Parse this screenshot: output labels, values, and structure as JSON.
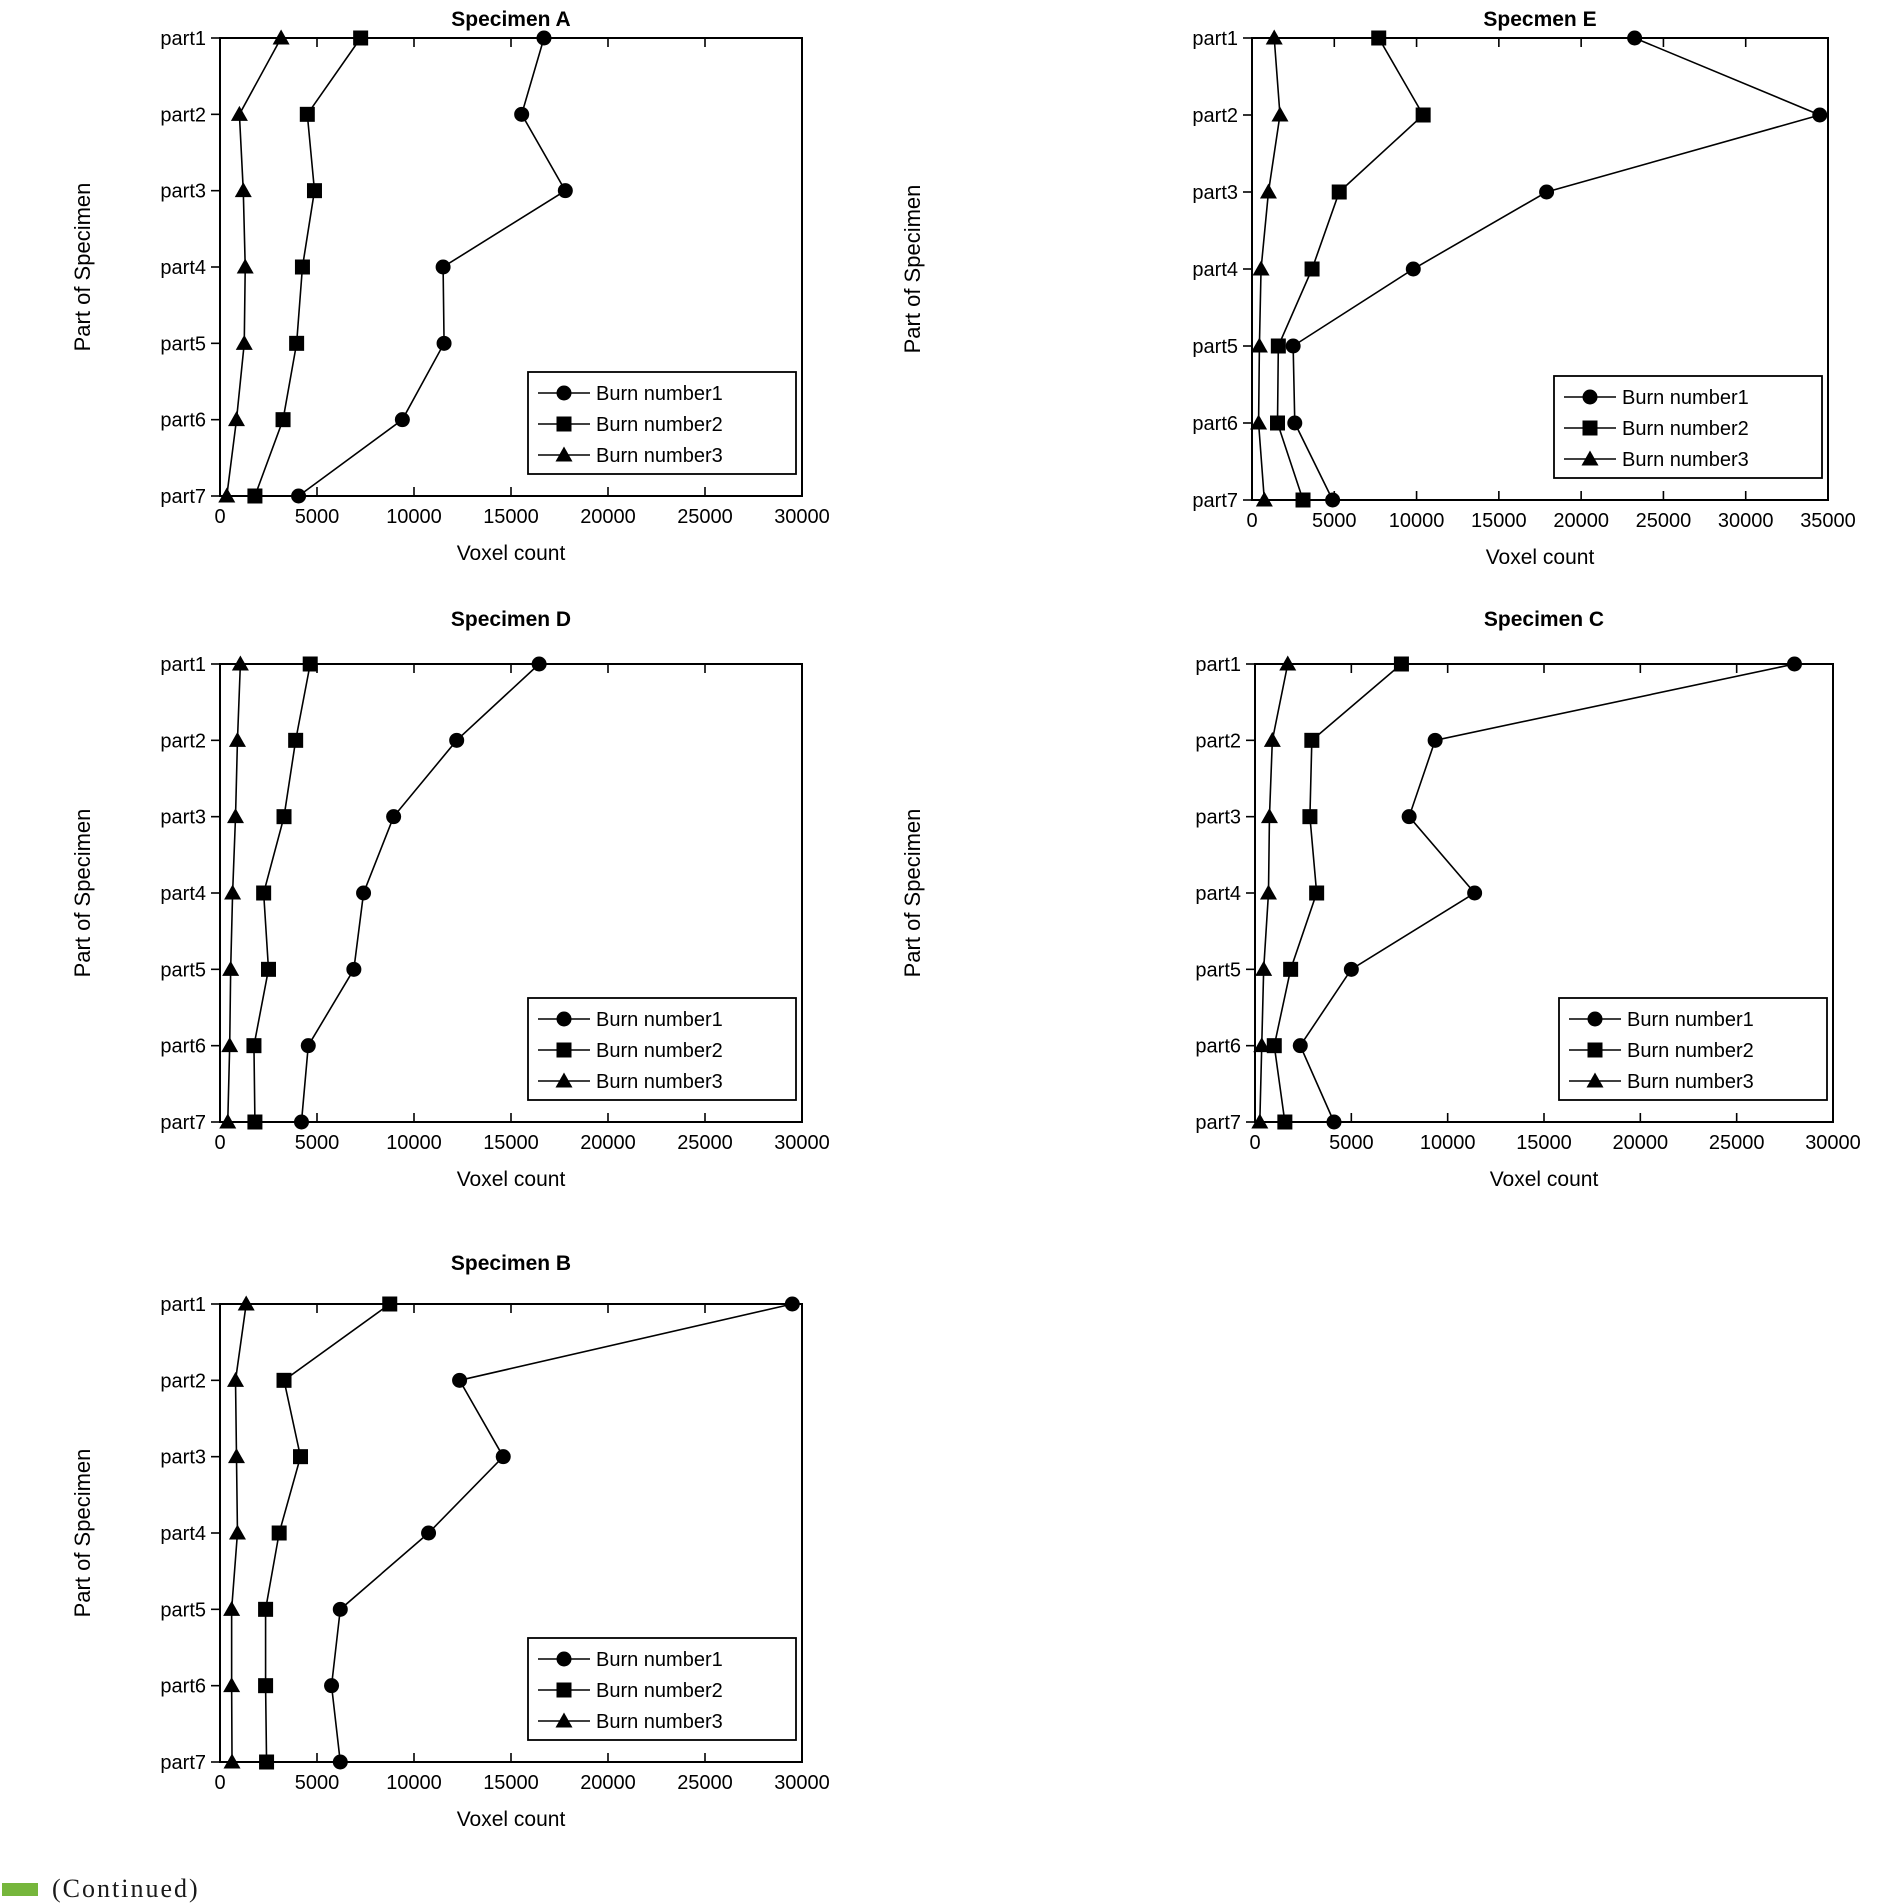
{
  "page": {
    "background_color": "#ffffff",
    "line_color": "#000000",
    "text_color": "#000000"
  },
  "footer": {
    "continued_label": "(Continued)",
    "marker_color": "#76b63c"
  },
  "chart_data": [
    {
      "type": "line",
      "title": "Specimen A",
      "xlabel": "Voxel count",
      "ylabel": "Part of Specimen",
      "categories": [
        "part1",
        "part2",
        "part3",
        "part4",
        "part5",
        "part6",
        "part7"
      ],
      "xlim": [
        0,
        30000
      ],
      "xticks": [
        0,
        5000,
        10000,
        15000,
        20000,
        25000,
        30000
      ],
      "grid": false,
      "legend_position": "lower right",
      "legend_labels": [
        "Burn number1",
        "Burn number2",
        "Burn number3"
      ],
      "series": [
        {
          "name": "Burn number1",
          "marker": "circle",
          "values": [
            16700,
            15550,
            17800,
            11500,
            11550,
            9400,
            4050
          ]
        },
        {
          "name": "Burn number2",
          "marker": "square",
          "values": [
            7250,
            4500,
            4870,
            4250,
            3950,
            3250,
            1800
          ]
        },
        {
          "name": "Burn number3",
          "marker": "triangle",
          "values": [
            3150,
            1000,
            1200,
            1300,
            1250,
            850,
            350
          ]
        }
      ]
    },
    {
      "type": "line",
      "title": "Specmen E",
      "xlabel": "Voxel count",
      "ylabel": "Part of Specimen",
      "categories": [
        "part1",
        "part2",
        "part3",
        "part4",
        "part5",
        "part6",
        "part7"
      ],
      "xlim": [
        0,
        35000
      ],
      "xticks": [
        0,
        5000,
        10000,
        15000,
        20000,
        25000,
        30000,
        35000
      ],
      "grid": false,
      "legend_position": "lower right",
      "legend_labels": [
        "Burn number1",
        "Burn number2",
        "Burn number3"
      ],
      "series": [
        {
          "name": "Burn number1",
          "marker": "circle",
          "values": [
            23250,
            34500,
            17900,
            9800,
            2500,
            2600,
            4900
          ]
        },
        {
          "name": "Burn number2",
          "marker": "square",
          "values": [
            7700,
            10400,
            5300,
            3650,
            1600,
            1550,
            3100
          ]
        },
        {
          "name": "Burn number3",
          "marker": "triangle",
          "values": [
            1350,
            1700,
            1000,
            550,
            450,
            400,
            750
          ]
        }
      ]
    },
    {
      "type": "line",
      "title": "Specimen D",
      "xlabel": "Voxel count",
      "ylabel": "Part of Specimen",
      "categories": [
        "part1",
        "part2",
        "part3",
        "part4",
        "part5",
        "part6",
        "part7"
      ],
      "xlim": [
        0,
        30000
      ],
      "xticks": [
        0,
        5000,
        10000,
        15000,
        20000,
        25000,
        30000
      ],
      "grid": false,
      "legend_position": "lower right",
      "legend_labels": [
        "Burn number1",
        "Burn number2",
        "Burn number3"
      ],
      "series": [
        {
          "name": "Burn number1",
          "marker": "circle",
          "values": [
            16450,
            12200,
            8950,
            7400,
            6900,
            4550,
            4200
          ]
        },
        {
          "name": "Burn number2",
          "marker": "square",
          "values": [
            4650,
            3900,
            3300,
            2250,
            2500,
            1750,
            1800
          ]
        },
        {
          "name": "Burn number3",
          "marker": "triangle",
          "values": [
            1050,
            900,
            800,
            650,
            550,
            500,
            400
          ]
        }
      ]
    },
    {
      "type": "line",
      "title": "Specimen C",
      "xlabel": "Voxel count",
      "ylabel": "Part of Specimen",
      "categories": [
        "part1",
        "part2",
        "part3",
        "part4",
        "part5",
        "part6",
        "part7"
      ],
      "xlim": [
        0,
        30000
      ],
      "xticks": [
        0,
        5000,
        10000,
        15000,
        20000,
        25000,
        30000
      ],
      "grid": false,
      "legend_position": "lower right",
      "legend_labels": [
        "Burn number1",
        "Burn number2",
        "Burn number3"
      ],
      "series": [
        {
          "name": "Burn number1",
          "marker": "circle",
          "values": [
            28000,
            9350,
            8000,
            11400,
            5000,
            2350,
            4100
          ]
        },
        {
          "name": "Burn number2",
          "marker": "square",
          "values": [
            7600,
            2950,
            2850,
            3200,
            1850,
            1000,
            1550
          ]
        },
        {
          "name": "Burn number3",
          "marker": "triangle",
          "values": [
            1700,
            900,
            750,
            700,
            450,
            350,
            250
          ]
        }
      ]
    },
    {
      "type": "line",
      "title": "Specimen B",
      "xlabel": "Voxel count",
      "ylabel": "Part of Specimen",
      "categories": [
        "part1",
        "part2",
        "part3",
        "part4",
        "part5",
        "part6",
        "part7"
      ],
      "xlim": [
        0,
        30000
      ],
      "xticks": [
        0,
        5000,
        10000,
        15000,
        20000,
        25000,
        30000
      ],
      "grid": false,
      "legend_position": "lower right",
      "legend_labels": [
        "Burn number1",
        "Burn number2",
        "Burn number3"
      ],
      "series": [
        {
          "name": "Burn number1",
          "marker": "circle",
          "values": [
            29500,
            12350,
            14600,
            10750,
            6200,
            5750,
            6200
          ]
        },
        {
          "name": "Burn number2",
          "marker": "square",
          "values": [
            8750,
            3300,
            4150,
            3050,
            2350,
            2350,
            2400
          ]
        },
        {
          "name": "Burn number3",
          "marker": "triangle",
          "values": [
            1350,
            800,
            850,
            900,
            600,
            600,
            620
          ]
        }
      ]
    }
  ]
}
